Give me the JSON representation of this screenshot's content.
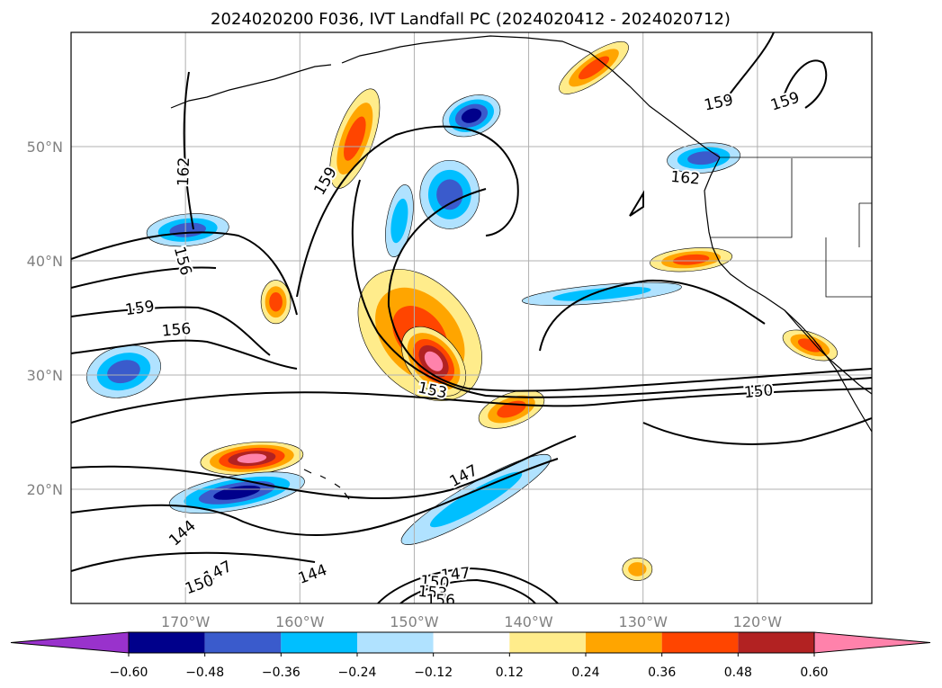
{
  "title": "2024020200 F036, IVT Landfall PC (2024020412 - 2024020712)",
  "map": {
    "lon_range": [
      -180,
      -110
    ],
    "lat_range": [
      10,
      60
    ],
    "lon_ticks": [
      {
        "value": -170,
        "label": "170°W"
      },
      {
        "value": -160,
        "label": "160°W"
      },
      {
        "value": -150,
        "label": "150°W"
      },
      {
        "value": -140,
        "label": "140°W"
      },
      {
        "value": -130,
        "label": "130°W"
      },
      {
        "value": -120,
        "label": "120°W"
      }
    ],
    "lat_ticks": [
      {
        "value": 20,
        "label": "20°N"
      },
      {
        "value": 30,
        "label": "30°N"
      },
      {
        "value": 40,
        "label": "40°N"
      },
      {
        "value": 50,
        "label": "50°N"
      }
    ],
    "grid": true,
    "contour_labels": [
      {
        "text": "159",
        "lon": -157.8,
        "lat": 47.0,
        "angle": -60
      },
      {
        "text": "162",
        "lon": -170.2,
        "lat": 47.8,
        "angle": -88
      },
      {
        "text": "156",
        "lon": -170.2,
        "lat": 40.0,
        "angle": 75
      },
      {
        "text": "159",
        "lon": -174.0,
        "lat": 35.9,
        "angle": -8
      },
      {
        "text": "156",
        "lon": -170.8,
        "lat": 34.0,
        "angle": -5
      },
      {
        "text": "153",
        "lon": -148.4,
        "lat": 28.7,
        "angle": 12
      },
      {
        "text": "150",
        "lon": -119.9,
        "lat": 28.6,
        "angle": -5
      },
      {
        "text": "147",
        "lon": -145.7,
        "lat": 21.2,
        "angle": -28
      },
      {
        "text": "144",
        "lon": -170.3,
        "lat": 16.2,
        "angle": -42
      },
      {
        "text": "147",
        "lon": -167.2,
        "lat": 12.8,
        "angle": -28
      },
      {
        "text": "150",
        "lon": -168.8,
        "lat": 11.7,
        "angle": -20
      },
      {
        "text": "144",
        "lon": -158.9,
        "lat": 12.6,
        "angle": -20
      },
      {
        "text": "147",
        "lon": -146.4,
        "lat": 12.6,
        "angle": -5
      },
      {
        "text": "150",
        "lon": -148.2,
        "lat": 11.9,
        "angle": 5
      },
      {
        "text": "153",
        "lon": -148.4,
        "lat": 11.0,
        "angle": 5
      },
      {
        "text": "156",
        "lon": -147.7,
        "lat": 10.3,
        "angle": 0
      },
      {
        "text": "159",
        "lon": -123.4,
        "lat": 53.9,
        "angle": -12
      },
      {
        "text": "159",
        "lon": -117.6,
        "lat": 54.0,
        "angle": -18
      },
      {
        "text": "162",
        "lon": -126.3,
        "lat": 47.3,
        "angle": 5
      }
    ]
  },
  "colorbar": {
    "ticks": [
      "−0.60",
      "−0.48",
      "−0.36",
      "−0.24",
      "−0.12",
      "0.12",
      "0.24",
      "0.36",
      "0.48",
      "0.60"
    ],
    "bins": [
      {
        "from": null,
        "to": -0.6,
        "color": "#9932cc"
      },
      {
        "from": -0.6,
        "to": -0.48,
        "color": "#00008b"
      },
      {
        "from": -0.48,
        "to": -0.36,
        "color": "#3a5bcc"
      },
      {
        "from": -0.36,
        "to": -0.24,
        "color": "#00bfff"
      },
      {
        "from": -0.24,
        "to": -0.12,
        "color": "#b0e2ff"
      },
      {
        "from": -0.12,
        "to": 0.12,
        "color": "#ffffff"
      },
      {
        "from": 0.12,
        "to": 0.24,
        "color": "#ffec8b"
      },
      {
        "from": 0.24,
        "to": 0.36,
        "color": "#ffa500"
      },
      {
        "from": 0.36,
        "to": 0.48,
        "color": "#ff4500"
      },
      {
        "from": 0.48,
        "to": 0.6,
        "color": "#b22222"
      },
      {
        "from": 0.6,
        "to": null,
        "color": "#ff82ab"
      }
    ]
  },
  "features": [
    {
      "name": "positive-band-main",
      "level": 0.36,
      "lon": -149.5,
      "lat": 33.5,
      "rx": 4.5,
      "ry": 6.5,
      "angle": -40
    },
    {
      "name": "positive-core-main",
      "level": 0.6,
      "lon": -148.3,
      "lat": 31.2,
      "rx": 2.2,
      "ry": 3.5,
      "angle": -40
    },
    {
      "name": "positive-north-band",
      "level": 0.36,
      "lon": -155.2,
      "lat": 50.7,
      "rx": 1.6,
      "ry": 4.6,
      "angle": 20
    },
    {
      "name": "positive-west-cell",
      "level": 0.36,
      "lon": -162.1,
      "lat": 36.4,
      "rx": 1.3,
      "ry": 1.9,
      "angle": 0
    },
    {
      "name": "positive-subtropic",
      "level": 0.6,
      "lon": -164.2,
      "lat": 22.7,
      "rx": 4.5,
      "ry": 1.4,
      "angle": -5
    },
    {
      "name": "positive-coast-ca",
      "level": 0.36,
      "lon": -125.8,
      "lat": 40.1,
      "rx": 3.6,
      "ry": 1.0,
      "angle": -5
    },
    {
      "name": "positive-central",
      "level": 0.36,
      "lon": -141.5,
      "lat": 27.0,
      "rx": 3.0,
      "ry": 1.4,
      "angle": -20
    },
    {
      "name": "positive-baja",
      "level": 0.36,
      "lon": -115.4,
      "lat": 32.6,
      "rx": 2.5,
      "ry": 1.1,
      "angle": 20
    },
    {
      "name": "positive-alaska",
      "level": 0.36,
      "lon": -134.3,
      "lat": 56.9,
      "rx": 3.6,
      "ry": 1.2,
      "angle": -35
    },
    {
      "name": "positive-small-sw",
      "level": 0.24,
      "lon": -130.5,
      "lat": 13.0,
      "rx": 1.3,
      "ry": 1.0,
      "angle": 0
    },
    {
      "name": "negative-north",
      "level": -0.48,
      "lon": -145.0,
      "lat": 52.7,
      "rx": 2.6,
      "ry": 1.7,
      "angle": -20
    },
    {
      "name": "negative-west-subtrop",
      "level": -0.48,
      "lon": -165.5,
      "lat": 19.7,
      "rx": 6.0,
      "ry": 1.5,
      "angle": -10
    },
    {
      "name": "negative-west-30",
      "level": -0.36,
      "lon": -175.4,
      "lat": 30.3,
      "rx": 3.3,
      "ry": 2.2,
      "angle": -15
    },
    {
      "name": "negative-42N",
      "level": -0.36,
      "lon": -169.8,
      "lat": 42.7,
      "rx": 3.6,
      "ry": 1.4,
      "angle": -5
    },
    {
      "name": "negative-arc",
      "level": -0.36,
      "lon": -146.9,
      "lat": 45.8,
      "rx": 2.6,
      "ry": 3.0,
      "angle": 0
    },
    {
      "name": "negative-narrow",
      "level": -0.24,
      "lon": -151.3,
      "lat": 43.5,
      "rx": 1.1,
      "ry": 3.2,
      "angle": 10
    },
    {
      "name": "negative-ne",
      "level": -0.36,
      "lon": -124.7,
      "lat": 49.0,
      "rx": 3.2,
      "ry": 1.3,
      "angle": -5
    },
    {
      "name": "negative-37N",
      "level": -0.24,
      "lon": -133.6,
      "lat": 37.1,
      "rx": 7.0,
      "ry": 0.8,
      "angle": -5
    },
    {
      "name": "negative-band-sw",
      "level": -0.24,
      "lon": -144.6,
      "lat": 19.1,
      "rx": 7.5,
      "ry": 1.4,
      "angle": -30
    }
  ]
}
